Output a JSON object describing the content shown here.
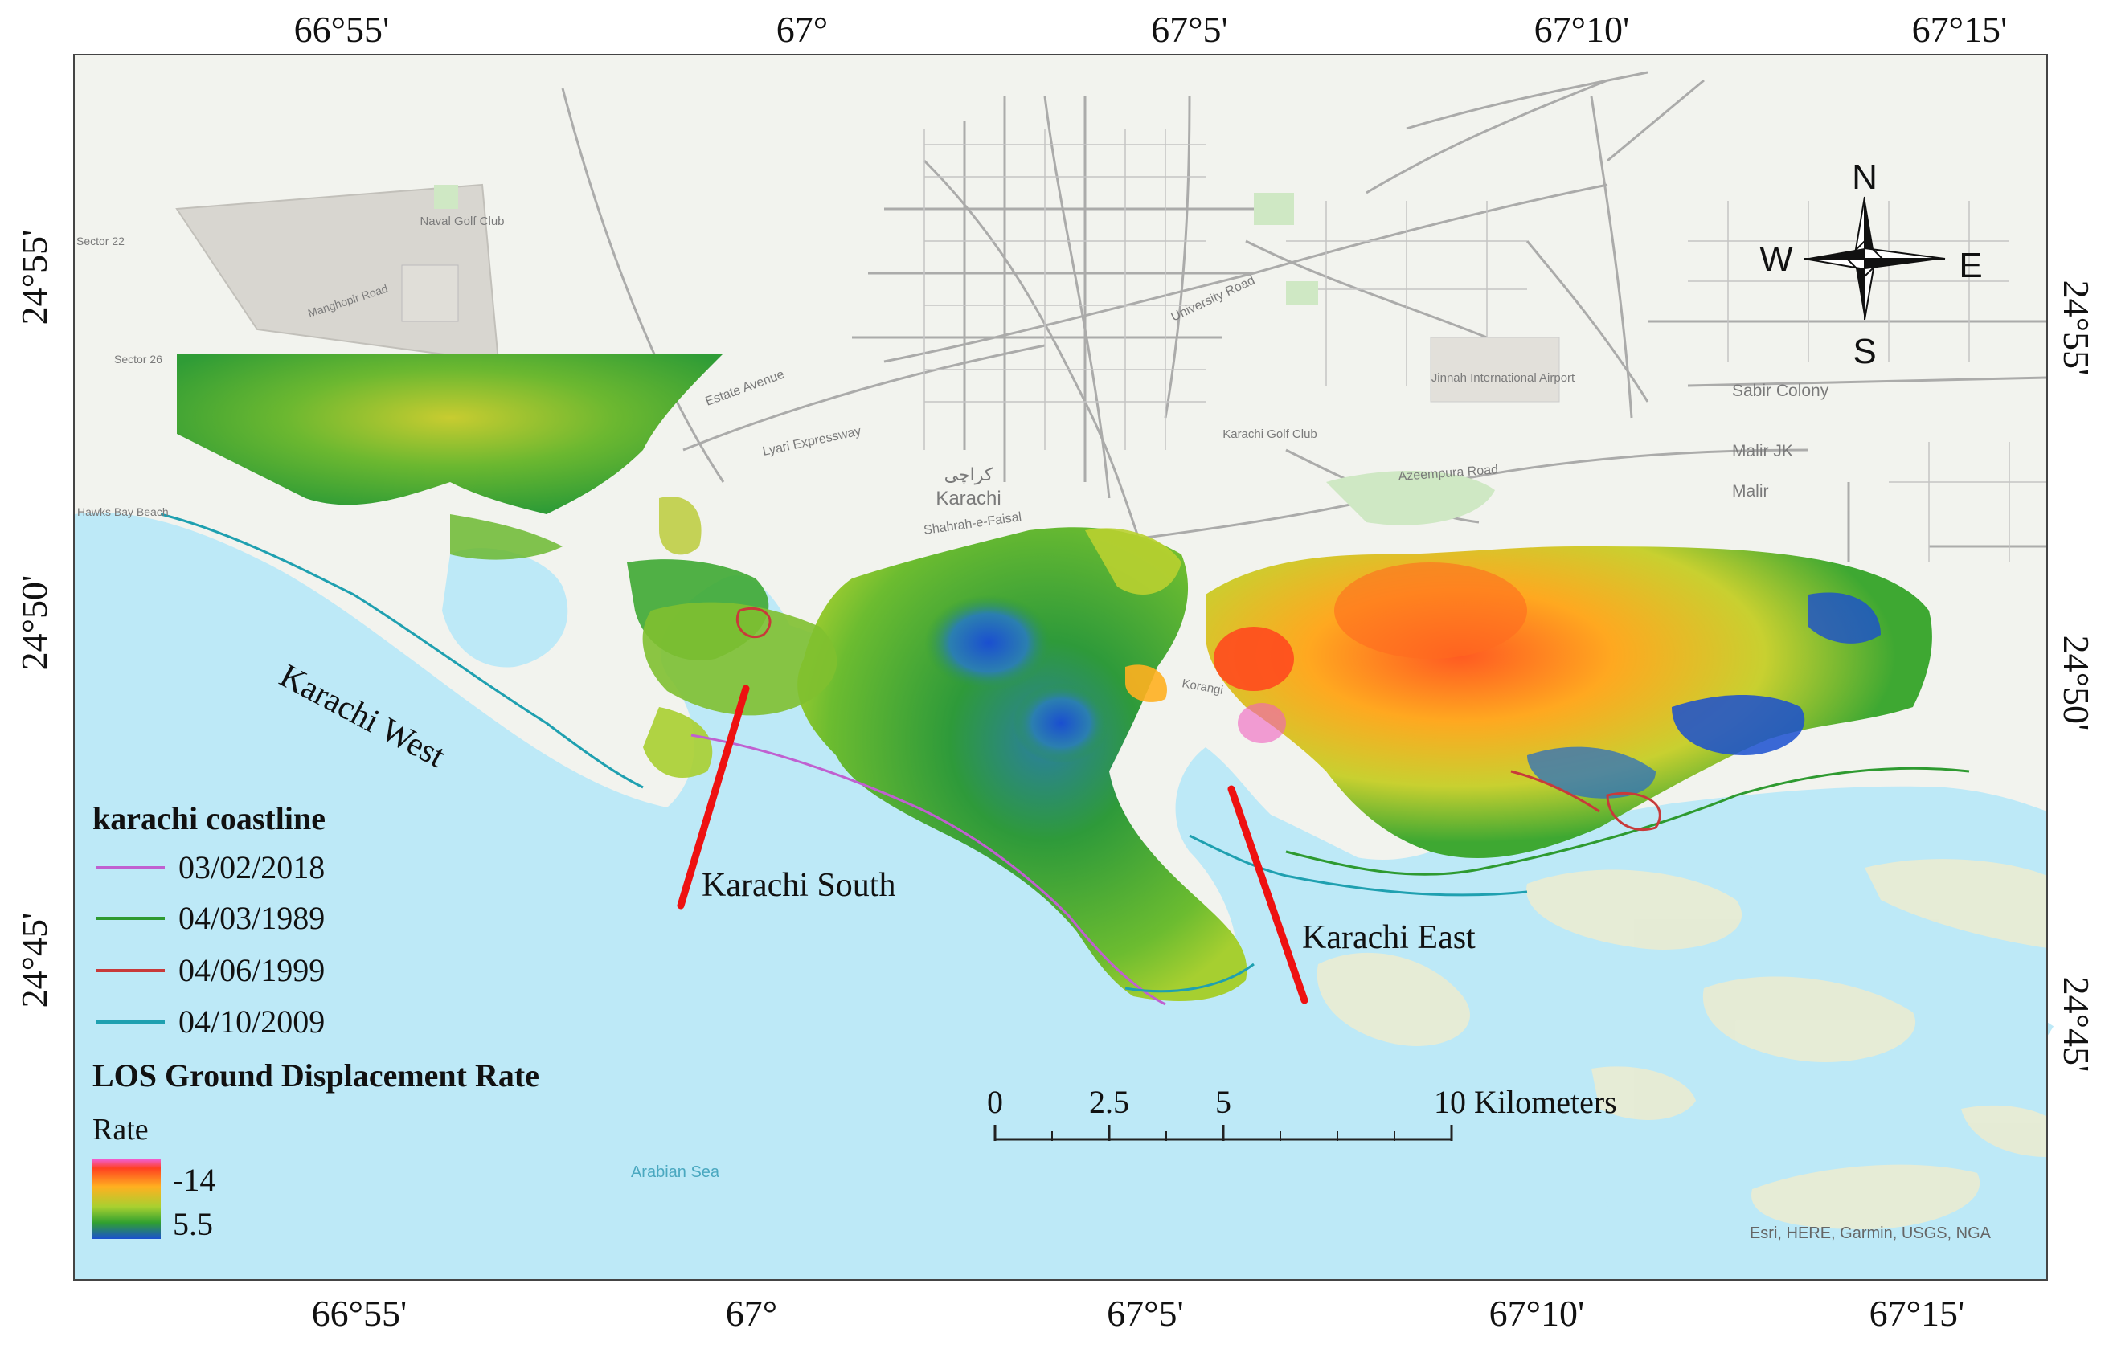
{
  "map": {
    "graticule": {
      "top_longitudes": [
        "66°55'",
        "67°",
        "67°5'",
        "67°10'",
        "67°15'"
      ],
      "bottom_longitudes": [
        "66°55'",
        "67°",
        "67°5'",
        "67°10'",
        "67°15'"
      ],
      "left_latitudes": [
        "24°55'",
        "24°50'",
        "24°45'"
      ],
      "right_latitudes": [
        "24°55'",
        "24°50'",
        "24°45'"
      ]
    },
    "north_arrow": {
      "n": "N",
      "s": "S",
      "e": "E",
      "w": "W"
    },
    "district_labels": {
      "west": "Karachi West",
      "south": "Karachi South",
      "east": "Karachi East"
    },
    "basemap_labels": {
      "sea": "Arabian Sea",
      "karachi": "Karachi",
      "karachi_urdu": "کراچی",
      "sabir_colony": "Sabir Colony",
      "malir_jk": "Malir JK",
      "malir": "Malir",
      "airport": "Jinnah International Airport",
      "golf_club": "Karachi Golf Club",
      "naval_golf": "Naval Golf Club",
      "lyari_expressway": "Lyari Expressway",
      "university_road": "University Road",
      "shahrah_e_faisal": "Shahrah-e-Faisal",
      "azeempura_road": "Azeempura Road",
      "estate_avenue": "Estate Avenue",
      "korangi": "Korangi",
      "manghopir_road": "Manghopir Road",
      "hawks_bay": "Hawks Bay Beach",
      "sector_22": "Sector 22",
      "sector_26": "Sector 26",
      "attribution": "Esri, HERE, Garmin, USGS, NGA"
    },
    "legend": {
      "coastline_title": "karachi coastline",
      "coastlines": [
        {
          "label": "03/02/2018",
          "color": "#c060d0"
        },
        {
          "label": "04/03/1989",
          "color": "#2e9a30"
        },
        {
          "label": "04/06/1999",
          "color": "#c83a3a"
        },
        {
          "label": "04/10/2009",
          "color": "#1fa0b0"
        }
      ],
      "rate_title": "LOS Ground Displacement Rate",
      "rate_subtitle": "Rate",
      "rate_max_label": "-14",
      "rate_min_label": "5.5",
      "ramp_colors": [
        "#f060e0",
        "#ff4020",
        "#ffb020",
        "#a8d030",
        "#30a030",
        "#1a50d0"
      ]
    },
    "scale_bar": {
      "ticks": [
        "0",
        "2.5",
        "5",
        "10 Kilometers"
      ]
    },
    "colors": {
      "sea": "#bde9f7",
      "land": "#f2f3ee",
      "road": "#8c8c8c",
      "pointer": "#ee1111"
    }
  }
}
